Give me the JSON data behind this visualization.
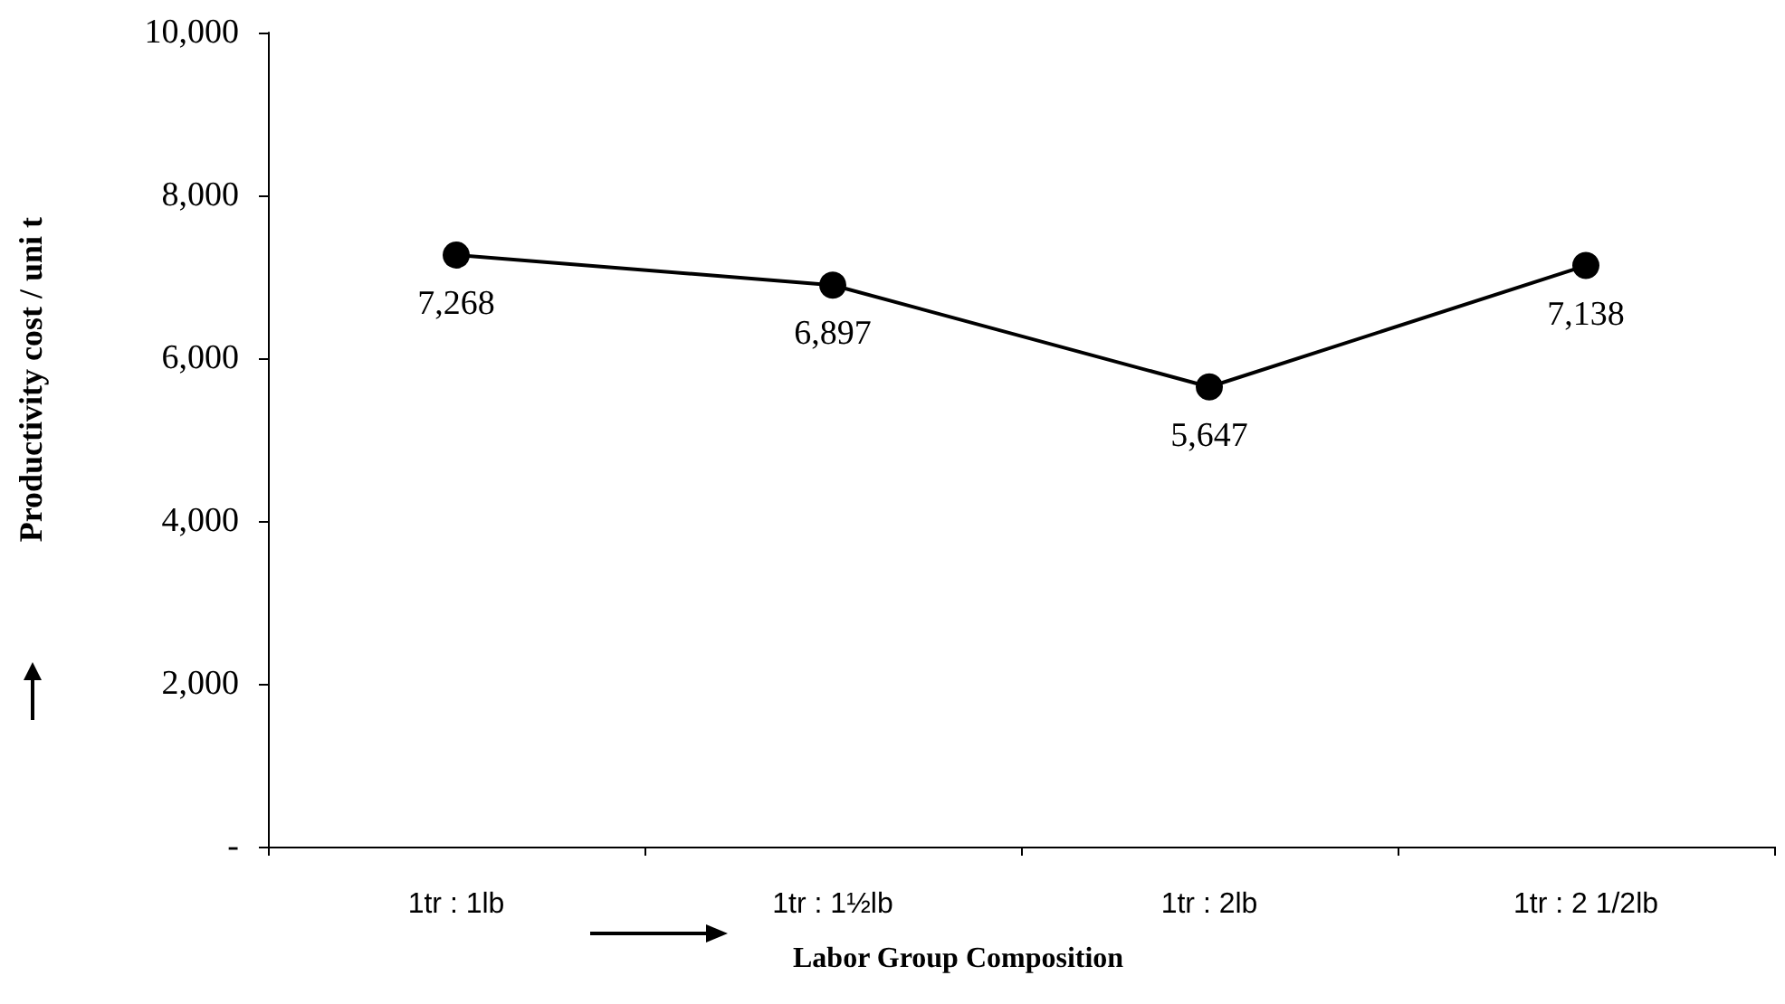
{
  "chart_data": {
    "type": "line",
    "xlabel": "Labor Group Composition",
    "ylabel": "Productivity cost / uni t",
    "categories": [
      "1tr : 1lb",
      "1tr : 1½lb",
      "1tr : 2lb",
      "1tr : 2 1/2lb"
    ],
    "series": [
      {
        "color": "#000000",
        "values": [
          7268,
          6897,
          5647,
          7138
        ],
        "value_labels": [
          "7,268",
          "6,897",
          "5,647",
          "7,138"
        ]
      }
    ],
    "ylim": [
      0,
      10000
    ],
    "yticks": [
      {
        "value": 0,
        "label": "-"
      },
      {
        "value": 2000,
        "label": "2,000"
      },
      {
        "value": 4000,
        "label": "4,000"
      },
      {
        "value": 6000,
        "label": "6,000"
      },
      {
        "value": 8000,
        "label": "8,000"
      },
      {
        "value": 10000,
        "label": "10,000"
      }
    ],
    "grid": false,
    "marker": "circle",
    "line_style": "solid"
  }
}
